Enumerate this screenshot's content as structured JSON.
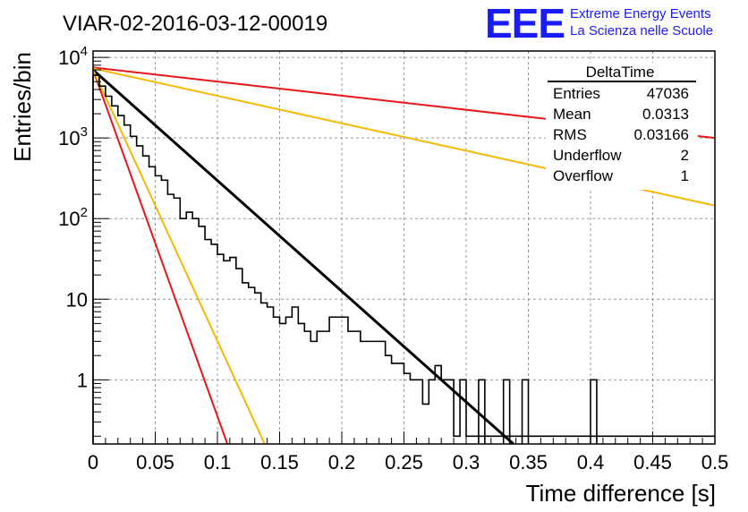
{
  "logo": {
    "mark": "EEE",
    "line1": "Extreme Energy Events",
    "line2": "La Scienza nelle Scuole",
    "color": "#1a1aff"
  },
  "chart_data": {
    "type": "histogram",
    "title": "VIAR-02-2016-03-12-00019",
    "xlabel": "Time difference [s]",
    "ylabel": "Entries/bin",
    "xlim": [
      0,
      0.5
    ],
    "ylim": [
      0.16,
      12000
    ],
    "y_scale": "log",
    "grid": true,
    "x_ticks": [
      {
        "v": 0,
        "label": "0"
      },
      {
        "v": 0.05,
        "label": "0.05"
      },
      {
        "v": 0.1,
        "label": "0.1"
      },
      {
        "v": 0.15,
        "label": "0.15"
      },
      {
        "v": 0.2,
        "label": "0.2"
      },
      {
        "v": 0.25,
        "label": "0.25"
      },
      {
        "v": 0.3,
        "label": "0.3"
      },
      {
        "v": 0.35,
        "label": "0.35"
      },
      {
        "v": 0.4,
        "label": "0.4"
      },
      {
        "v": 0.45,
        "label": "0.45"
      },
      {
        "v": 0.5,
        "label": "0.5"
      }
    ],
    "y_ticks": [
      {
        "v": 1,
        "label": "1"
      },
      {
        "v": 10,
        "label": "10"
      },
      {
        "v": 100,
        "label": "10",
        "exp": "2"
      },
      {
        "v": 1000,
        "label": "10",
        "exp": "3"
      },
      {
        "v": 10000,
        "label": "10",
        "exp": "4"
      }
    ],
    "histogram": {
      "color": "#000000",
      "bin_width": 0.005,
      "counts": [
        6000,
        4400,
        3300,
        2500,
        1900,
        1450,
        1050,
        800,
        600,
        440,
        340,
        300,
        200,
        180,
        100,
        120,
        100,
        80,
        55,
        48,
        36,
        30,
        33,
        24,
        16,
        14,
        12,
        9,
        8,
        6,
        5,
        6,
        8,
        5,
        4,
        3,
        4,
        4,
        6,
        6,
        6,
        4,
        4,
        3,
        3,
        3,
        3,
        2,
        1.6,
        1.6,
        1.2,
        1,
        1,
        0.5,
        1,
        1.5,
        1,
        1,
        0.2,
        1,
        0.2,
        0.2,
        0.2,
        0.2,
        0.2,
        0.2,
        0.2,
        0.2,
        0.2,
        0.2,
        0.2,
        0.2,
        0.2,
        0.2,
        0.2,
        0.2,
        0.2,
        0.2,
        0.2,
        0.2,
        0.2,
        0.2,
        0.2,
        0.2,
        0.2,
        0.2,
        0.2,
        0.2,
        0.2,
        0.2,
        0.2,
        0.2,
        0.2,
        0.2,
        0.2,
        0.2,
        0.2,
        0.2,
        0.2,
        0.2
      ],
      "isolated_unit_bins": [
        0.31,
        0.33,
        0.345,
        0.4
      ]
    },
    "fits": [
      {
        "color": "#000000",
        "points": [
          [
            0,
            7000
          ],
          [
            0.338,
            0.16
          ]
        ]
      },
      {
        "color": "#e8161b",
        "points": [
          [
            0,
            7500
          ],
          [
            0.5,
            1000
          ]
        ]
      },
      {
        "color": "#f5b800",
        "points": [
          [
            0,
            7300
          ],
          [
            0.5,
            145
          ]
        ]
      },
      {
        "color": "#e8161b",
        "points": [
          [
            0,
            7000
          ],
          [
            0.108,
            0.16
          ]
        ]
      },
      {
        "color": "#f5b800",
        "points": [
          [
            0,
            7000
          ],
          [
            0.138,
            0.16
          ]
        ]
      }
    ],
    "stats_box": {
      "title": "DeltaTime",
      "rows": [
        {
          "label": "Entries",
          "value": "47036"
        },
        {
          "label": "Mean",
          "value": "0.0313"
        },
        {
          "label": "RMS",
          "value": "0.03166"
        },
        {
          "label": "Underflow",
          "value": "2"
        },
        {
          "label": "Overflow",
          "value": "1"
        }
      ]
    }
  }
}
